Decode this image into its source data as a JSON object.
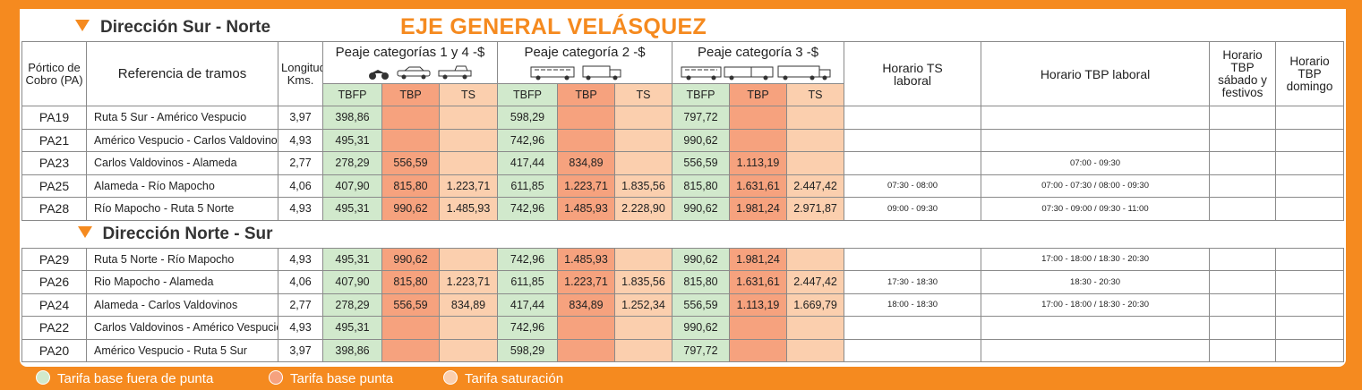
{
  "header": {
    "title": "EJE GENERAL VELÁSQUEZ"
  },
  "columns": {
    "portico": "Pórtico de Cobro (PA)",
    "referencia": "Referencia de tramos",
    "longitud": "Longitud Kms.",
    "cat1": "Peaje categorías 1 y 4 -$",
    "cat2": "Peaje categoría 2 -$",
    "cat3": "Peaje categoría 3 -$",
    "horario_ts": "Horario TS laboral",
    "horario_tbp": "Horario TBP laboral",
    "horario_sab": "Horario TBP sábado y festivos",
    "horario_dom": "Horario TBP domingo",
    "tbfp": "TBFP",
    "tbp": "TBP",
    "ts": "TS"
  },
  "sections": [
    {
      "title": "Dirección Sur - Norte",
      "rows": [
        [
          "PA19",
          "Ruta 5 Sur - Américo Vespucio",
          "3,97",
          "398,86",
          null,
          null,
          "598,29",
          null,
          null,
          "797,72",
          null,
          null,
          null,
          null,
          null,
          null
        ],
        [
          "PA21",
          "Américo Vespucio - Carlos Valdovinos",
          "4,93",
          "495,31",
          null,
          null,
          "742,96",
          null,
          null,
          "990,62",
          null,
          null,
          null,
          null,
          null,
          null
        ],
        [
          "PA23",
          "Carlos Valdovinos - Alameda",
          "2,77",
          "278,29",
          "556,59",
          null,
          "417,44",
          "834,89",
          null,
          "556,59",
          "1.113,19",
          null,
          null,
          "07:00 - 09:30",
          null,
          null
        ],
        [
          "PA25",
          "Alameda - Río Mapocho",
          "4,06",
          "407,90",
          "815,80",
          "1.223,71",
          "611,85",
          "1.223,71",
          "1.835,56",
          "815,80",
          "1.631,61",
          "2.447,42",
          "07:30 - 08:00",
          "07:00 - 07:30 / 08:00 - 09:30",
          null,
          null
        ],
        [
          "PA28",
          "Río Mapocho - Ruta 5 Norte",
          "4,93",
          "495,31",
          "990,62",
          "1.485,93",
          "742,96",
          "1.485,93",
          "2.228,90",
          "990,62",
          "1.981,24",
          "2.971,87",
          "09:00 - 09:30",
          "07:30 - 09:00 / 09:30 - 11:00",
          null,
          null
        ]
      ]
    },
    {
      "title": "Dirección Norte - Sur",
      "rows": [
        [
          "PA29",
          "Ruta 5 Norte - Río Mapocho",
          "4,93",
          "495,31",
          "990,62",
          null,
          "742,96",
          "1.485,93",
          null,
          "990,62",
          "1.981,24",
          null,
          null,
          "17:00 - 18:00 / 18:30 - 20:30",
          null,
          null
        ],
        [
          "PA26",
          "Rio Mapocho - Alameda",
          "4,06",
          "407,90",
          "815,80",
          "1.223,71",
          "611,85",
          "1.223,71",
          "1.835,56",
          "815,80",
          "1.631,61",
          "2.447,42",
          "17:30 - 18:30",
          "18:30 - 20:30",
          null,
          null
        ],
        [
          "PA24",
          "Alameda - Carlos Valdovinos",
          "2,77",
          "278,29",
          "556,59",
          "834,89",
          "417,44",
          "834,89",
          "1.252,34",
          "556,59",
          "1.113,19",
          "1.669,79",
          "18:00 - 18:30",
          "17:00 - 18:00 / 18:30 - 20:30",
          null,
          null
        ],
        [
          "PA22",
          "Carlos Valdovinos - Américo Vespucio",
          "4,93",
          "495,31",
          null,
          null,
          "742,96",
          null,
          null,
          "990,62",
          null,
          null,
          null,
          null,
          null,
          null
        ],
        [
          "PA20",
          "Américo Vespucio - Ruta 5 Sur",
          "3,97",
          "398,86",
          null,
          null,
          "598,29",
          null,
          null,
          "797,72",
          null,
          null,
          null,
          null,
          null,
          null
        ]
      ]
    }
  ],
  "legend": [
    "Tarifa base fuera de punta",
    "Tarifa base punta",
    "Tarifa saturación"
  ]
}
